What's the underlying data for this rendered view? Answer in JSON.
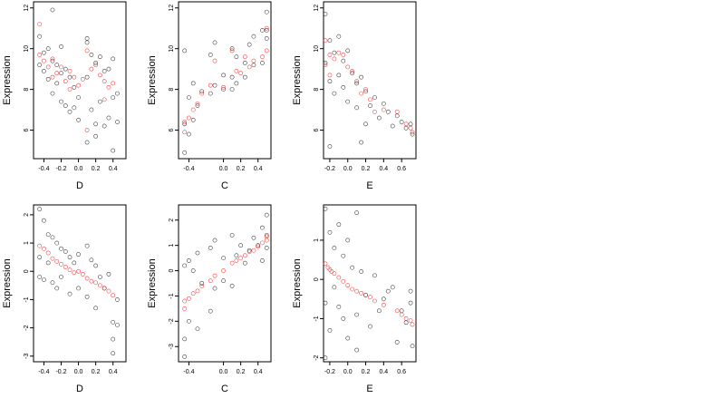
{
  "colors": {
    "background": "#ffffff",
    "black_series": "#000000",
    "red_series": "#ff0000"
  },
  "chart_data": [
    {
      "type": "scatter",
      "xlabel": "D",
      "ylabel": "Expression",
      "xlim": [
        -0.52,
        0.55
      ],
      "ylim": [
        4.6,
        12.3
      ],
      "xticks": [
        "-0.4",
        "-0.2",
        "0.0",
        "0.2",
        "0.4"
      ],
      "xtick_values": [
        -0.4,
        -0.2,
        0.0,
        0.2,
        0.4
      ],
      "yticks": [
        "6",
        "8",
        "10",
        "12"
      ],
      "ytick_values": [
        6,
        8,
        10,
        12
      ],
      "series": [
        {
          "color": "black",
          "x": [
            -0.45,
            -0.45,
            -0.4,
            -0.4,
            -0.35,
            -0.35,
            -0.3,
            -0.3,
            -0.25,
            -0.25,
            -0.2,
            -0.2,
            -0.15,
            -0.15,
            -0.1,
            -0.1,
            -0.05,
            -0.05,
            0.0,
            0.0,
            0.1,
            0.1,
            0.1,
            0.15,
            0.15,
            0.2,
            0.2,
            0.25,
            0.25,
            0.3,
            0.3,
            0.35,
            0.35,
            0.4,
            0.4,
            0.45,
            -0.3,
            -0.2,
            0.1,
            0.2,
            0.4,
            0.45
          ],
          "y": [
            10.6,
            9.2,
            9.8,
            8.9,
            10.0,
            8.5,
            9.4,
            7.8,
            9.2,
            8.3,
            8.8,
            7.4,
            9.0,
            7.2,
            8.6,
            6.9,
            8.1,
            7.1,
            7.6,
            6.5,
            10.5,
            8.6,
            5.4,
            9.7,
            7.0,
            9.3,
            6.3,
            9.6,
            7.4,
            8.9,
            6.2,
            9.0,
            6.6,
            7.6,
            5.0,
            6.4,
            11.9,
            10.1,
            10.3,
            5.7,
            9.5,
            7.8
          ]
        },
        {
          "color": "red",
          "x": [
            -0.45,
            -0.45,
            -0.4,
            -0.35,
            -0.3,
            -0.3,
            -0.25,
            -0.2,
            -0.15,
            -0.1,
            -0.1,
            -0.05,
            0.0,
            0.05,
            0.1,
            0.1,
            0.15,
            0.2,
            0.25,
            0.3,
            0.3,
            0.35,
            0.4
          ],
          "y": [
            11.2,
            9.7,
            9.4,
            9.1,
            9.5,
            8.6,
            8.8,
            9.1,
            8.4,
            8.9,
            8.0,
            8.6,
            8.2,
            8.5,
            9.9,
            6.0,
            9.0,
            9.2,
            8.7,
            8.4,
            7.5,
            8.1,
            8.3
          ]
        }
      ]
    },
    {
      "type": "scatter",
      "xlabel": "C",
      "ylabel": "Expression",
      "xlim": [
        -0.52,
        0.55
      ],
      "ylim": [
        4.6,
        12.3
      ],
      "xticks": [
        "-0.4",
        "0.0",
        "0.2",
        "0.4"
      ],
      "xtick_values": [
        -0.4,
        0.0,
        0.2,
        0.4
      ],
      "yticks": [
        "6",
        "8",
        "10",
        "12"
      ],
      "ytick_values": [
        6,
        8,
        10,
        12
      ],
      "series": [
        {
          "color": "black",
          "x": [
            -0.45,
            -0.45,
            -0.4,
            -0.4,
            -0.35,
            -0.35,
            -0.3,
            -0.25,
            -0.15,
            -0.15,
            -0.1,
            -0.1,
            0.0,
            0.0,
            0.1,
            0.1,
            0.1,
            0.15,
            0.15,
            0.25,
            0.25,
            0.3,
            0.35,
            0.35,
            0.45,
            0.45,
            0.5,
            0.5,
            -0.45,
            0.5
          ],
          "y": [
            6.3,
            4.9,
            7.6,
            5.8,
            8.3,
            6.5,
            7.2,
            7.9,
            9.7,
            7.8,
            10.3,
            8.2,
            8.7,
            8.0,
            10.0,
            8.6,
            8.0,
            9.6,
            8.3,
            9.3,
            8.6,
            10.2,
            10.6,
            9.2,
            10.9,
            9.3,
            11.8,
            10.5,
            9.9,
            10.9
          ]
        },
        {
          "color": "red",
          "x": [
            -0.45,
            -0.45,
            -0.4,
            -0.35,
            -0.3,
            -0.25,
            -0.15,
            -0.1,
            0.0,
            0.1,
            0.15,
            0.2,
            0.25,
            0.3,
            0.35,
            0.45,
            0.5,
            0.5
          ],
          "y": [
            5.9,
            6.4,
            6.6,
            7.0,
            7.3,
            7.8,
            8.2,
            9.4,
            8.1,
            9.9,
            8.9,
            8.8,
            9.6,
            9.1,
            9.4,
            9.6,
            9.9,
            11.0
          ]
        }
      ]
    },
    {
      "type": "scatter",
      "xlabel": "E",
      "ylabel": "Expression",
      "xlim": [
        -0.27,
        0.76
      ],
      "ylim": [
        4.6,
        12.3
      ],
      "xticks": [
        "-0.2",
        "0.0",
        "0.2",
        "0.4",
        "0.6"
      ],
      "xtick_values": [
        -0.2,
        0.0,
        0.2,
        0.4,
        0.6
      ],
      "yticks": [
        "6",
        "8",
        "10",
        "12"
      ],
      "ytick_values": [
        6,
        8,
        10,
        12
      ],
      "series": [
        {
          "color": "black",
          "x": [
            -0.25,
            -0.25,
            -0.2,
            -0.2,
            -0.15,
            -0.15,
            -0.1,
            -0.1,
            -0.05,
            -0.05,
            0.0,
            0.0,
            0.05,
            0.1,
            0.1,
            0.15,
            0.2,
            0.2,
            0.25,
            0.3,
            0.35,
            0.4,
            0.45,
            0.5,
            0.55,
            0.6,
            0.65,
            0.7,
            0.72,
            -0.2,
            0.15
          ],
          "y": [
            11.7,
            9.3,
            10.4,
            8.4,
            9.8,
            7.8,
            10.6,
            8.7,
            9.4,
            8.1,
            9.9,
            7.4,
            8.8,
            8.3,
            7.1,
            8.6,
            7.9,
            6.3,
            7.2,
            7.6,
            6.6,
            7.3,
            6.9,
            6.2,
            6.7,
            6.4,
            6.1,
            6.3,
            5.8,
            5.2,
            5.4
          ]
        },
        {
          "color": "red",
          "x": [
            -0.25,
            -0.25,
            -0.2,
            -0.2,
            -0.15,
            -0.1,
            -0.05,
            0.0,
            0.05,
            0.1,
            0.15,
            0.2,
            0.25,
            0.3,
            0.4,
            0.55,
            0.65,
            0.7,
            0.72
          ],
          "y": [
            10.4,
            9.2,
            9.7,
            8.7,
            9.5,
            9.8,
            9.7,
            9.1,
            8.9,
            8.4,
            7.8,
            8.0,
            7.5,
            6.9,
            7.0,
            6.9,
            6.3,
            6.1,
            5.9
          ]
        }
      ]
    },
    {
      "type": "scatter",
      "xlabel": "D",
      "ylabel": "Expression",
      "xlim": [
        -0.52,
        0.55
      ],
      "ylim": [
        -3.2,
        2.35
      ],
      "xticks": [
        "-0.4",
        "-0.2",
        "0.0",
        "0.2",
        "0.4"
      ],
      "xtick_values": [
        -0.4,
        -0.2,
        0.0,
        0.2,
        0.4
      ],
      "yticks": [
        "-3",
        "-2",
        "-1",
        "0",
        "1",
        "2"
      ],
      "ytick_values": [
        -3,
        -2,
        -1,
        0,
        1,
        2
      ],
      "series": [
        {
          "color": "black",
          "x": [
            -0.45,
            -0.45,
            -0.4,
            -0.4,
            -0.35,
            -0.35,
            -0.3,
            -0.3,
            -0.25,
            -0.25,
            -0.2,
            -0.2,
            -0.15,
            -0.1,
            -0.1,
            -0.05,
            0.0,
            0.0,
            0.1,
            0.1,
            0.15,
            0.2,
            0.2,
            0.25,
            0.3,
            0.35,
            0.4,
            0.4,
            0.45,
            0.45,
            -0.45,
            0.4
          ],
          "y": [
            2.2,
            0.5,
            1.8,
            -0.3,
            1.3,
            0.3,
            1.2,
            -0.4,
            1.0,
            -0.6,
            0.8,
            -0.2,
            0.7,
            0.5,
            -0.8,
            0.3,
            0.6,
            -0.6,
            0.9,
            -0.9,
            0.4,
            0.2,
            -1.3,
            -0.2,
            -0.6,
            -0.1,
            -1.8,
            -2.4,
            -1.0,
            -1.9,
            -0.2,
            -2.9
          ]
        },
        {
          "color": "red",
          "x": [
            -0.45,
            -0.4,
            -0.35,
            -0.3,
            -0.25,
            -0.2,
            -0.15,
            -0.1,
            -0.05,
            0.0,
            0.05,
            0.1,
            0.15,
            0.2,
            0.25,
            0.3,
            0.35,
            0.4
          ],
          "y": [
            0.9,
            0.8,
            0.65,
            0.45,
            0.35,
            0.25,
            0.15,
            0.05,
            -0.05,
            0.0,
            -0.1,
            -0.25,
            -0.35,
            -0.4,
            -0.5,
            -0.6,
            -0.7,
            -0.85
          ]
        }
      ]
    },
    {
      "type": "scatter",
      "xlabel": "C",
      "ylabel": "Expression",
      "xlim": [
        -0.52,
        0.55
      ],
      "ylim": [
        -3.6,
        2.6
      ],
      "xticks": [
        "-0.4",
        "0.0",
        "0.2",
        "0.4"
      ],
      "xtick_values": [
        -0.4,
        0.0,
        0.2,
        0.4
      ],
      "yticks": [
        "-3",
        "-2",
        "-1",
        "0",
        "1",
        "2"
      ],
      "ytick_values": [
        -3,
        -2,
        -1,
        0,
        1,
        2
      ],
      "series": [
        {
          "color": "black",
          "x": [
            -0.45,
            -0.45,
            -0.4,
            -0.4,
            -0.35,
            -0.3,
            -0.3,
            -0.25,
            -0.15,
            -0.15,
            -0.1,
            -0.1,
            0.0,
            0.0,
            0.1,
            0.1,
            0.15,
            0.2,
            0.25,
            0.3,
            0.35,
            0.4,
            0.45,
            0.45,
            0.5,
            0.5,
            -0.45,
            0.5
          ],
          "y": [
            0.2,
            -2.7,
            0.4,
            -2.0,
            0.0,
            0.7,
            -2.3,
            -0.5,
            0.9,
            -1.6,
            1.2,
            -0.7,
            0.5,
            -0.4,
            1.4,
            -0.6,
            0.6,
            1.0,
            0.3,
            0.8,
            1.3,
            1.0,
            1.7,
            0.4,
            2.2,
            0.9,
            -3.4,
            1.4
          ]
        },
        {
          "color": "red",
          "x": [
            -0.45,
            -0.45,
            -0.4,
            -0.35,
            -0.3,
            -0.25,
            -0.15,
            -0.1,
            0.0,
            0.1,
            0.15,
            0.2,
            0.25,
            0.3,
            0.35,
            0.4,
            0.45,
            0.5,
            0.5
          ],
          "y": [
            -1.5,
            -1.2,
            -1.1,
            -0.9,
            -0.8,
            -0.6,
            -0.4,
            -0.2,
            0.0,
            0.3,
            0.4,
            0.5,
            0.6,
            0.75,
            0.8,
            0.95,
            1.1,
            1.2,
            1.35
          ]
        }
      ]
    },
    {
      "type": "scatter",
      "xlabel": "E",
      "ylabel": "Expression",
      "xlim": [
        -0.27,
        0.76
      ],
      "ylim": [
        -2.1,
        1.9
      ],
      "xticks": [
        "-0.2",
        "0.0",
        "0.2",
        "0.4",
        "0.6"
      ],
      "xtick_values": [
        -0.2,
        0.0,
        0.2,
        0.4,
        0.6
      ],
      "yticks": [
        "-2",
        "-1",
        "0",
        "1"
      ],
      "ytick_values": [
        -2,
        -1,
        0,
        1
      ],
      "series": [
        {
          "color": "black",
          "x": [
            -0.25,
            -0.25,
            -0.2,
            -0.2,
            -0.15,
            -0.15,
            -0.1,
            -0.1,
            -0.05,
            -0.05,
            0.0,
            0.0,
            0.05,
            0.1,
            0.1,
            0.15,
            0.2,
            0.25,
            0.3,
            0.35,
            0.4,
            0.45,
            0.5,
            0.55,
            0.6,
            0.65,
            0.7,
            0.72,
            -0.25,
            0.1,
            0.7
          ],
          "y": [
            1.8,
            -0.6,
            1.2,
            -1.3,
            0.8,
            -0.2,
            1.4,
            -0.7,
            0.6,
            -1.0,
            1.0,
            -1.5,
            0.3,
            1.7,
            -0.9,
            0.2,
            -0.4,
            -1.2,
            0.1,
            -0.8,
            -0.5,
            -0.3,
            -0.2,
            -1.6,
            -0.8,
            -1.1,
            -0.3,
            -1.7,
            -2.0,
            -1.8,
            -0.6
          ]
        },
        {
          "color": "red",
          "x": [
            -0.25,
            -0.22,
            -0.2,
            -0.18,
            -0.15,
            -0.1,
            -0.05,
            0.0,
            0.05,
            0.1,
            0.15,
            0.2,
            0.25,
            0.3,
            0.4,
            0.55,
            0.6,
            0.65,
            0.7,
            0.72
          ],
          "y": [
            0.4,
            0.3,
            0.25,
            0.2,
            0.15,
            0.05,
            -0.05,
            -0.15,
            -0.25,
            -0.3,
            -0.35,
            -0.4,
            -0.45,
            -0.55,
            -0.65,
            -0.8,
            -0.9,
            -1.0,
            -1.05,
            -1.15
          ]
        }
      ]
    }
  ]
}
